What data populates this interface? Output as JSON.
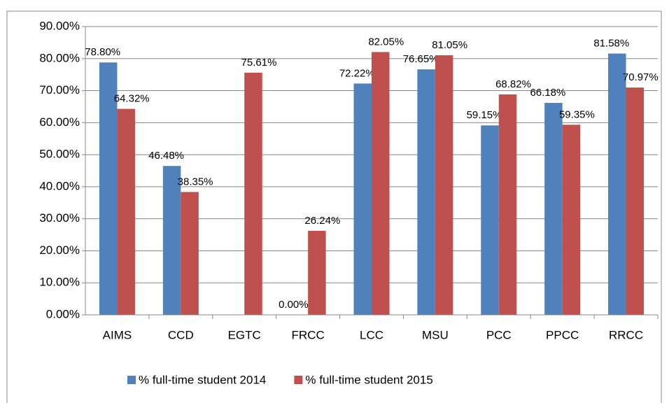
{
  "chart_data": {
    "type": "bar",
    "categories": [
      "AIMS",
      "CCD",
      "EGTC",
      "FRCC",
      "LCC",
      "MSU",
      "PCC",
      "PPCC",
      "RRCC"
    ],
    "series": [
      {
        "name": "% full-time student 2014",
        "color": "#4f81bd",
        "values": [
          78.8,
          46.48,
          null,
          0.0,
          72.22,
          76.65,
          59.15,
          66.18,
          81.58
        ],
        "value_labels": [
          "78.80%",
          "46.48%",
          null,
          "0.00%",
          "72.22%",
          "76.65%",
          "59.15%",
          "66.18%",
          "81.58%"
        ]
      },
      {
        "name": "% full-time student 2015",
        "color": "#c0504d",
        "values": [
          64.32,
          38.35,
          75.61,
          26.24,
          82.05,
          81.05,
          68.82,
          59.35,
          70.97
        ],
        "value_labels": [
          "64.32%",
          "38.35%",
          "75.61%",
          "26.24%",
          "82.05%",
          "81.05%",
          "68.82%",
          "59.35%",
          "70.97%"
        ]
      }
    ],
    "ylim": [
      0,
      90
    ],
    "yticks": [
      {
        "value": 0,
        "label": "0.00%"
      },
      {
        "value": 10,
        "label": "10.00%"
      },
      {
        "value": 20,
        "label": "20.00%"
      },
      {
        "value": 30,
        "label": "30.00%"
      },
      {
        "value": 40,
        "label": "40.00%"
      },
      {
        "value": 50,
        "label": "50.00%"
      },
      {
        "value": 60,
        "label": "60.00%"
      },
      {
        "value": 70,
        "label": "70.00%"
      },
      {
        "value": 80,
        "label": "80.00%"
      },
      {
        "value": 90,
        "label": "90.00%"
      }
    ],
    "grid": true,
    "legend": "bottom"
  }
}
